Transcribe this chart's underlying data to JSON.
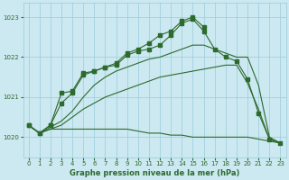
{
  "title": "Graphe pression niveau de la mer (hPa)",
  "background_color": "#cce8f0",
  "grid_color": "#99ccdd",
  "line_color": "#2d6a2d",
  "x_labels": [
    "0",
    "1",
    "2",
    "3",
    "4",
    "5",
    "6",
    "7",
    "8",
    "9",
    "10",
    "11",
    "12",
    "13",
    "14",
    "15",
    "16",
    "17",
    "18",
    "19",
    "20",
    "21",
    "22",
    "23"
  ],
  "ylim": [
    1019.5,
    1023.35
  ],
  "yticks": [
    1020,
    1021,
    1022,
    1023
  ],
  "figsize": [
    3.2,
    2.0
  ],
  "dpi": 100,
  "series": [
    {
      "x": [
        0,
        1,
        2,
        3,
        4,
        5,
        6,
        7,
        8,
        9,
        10,
        11,
        12,
        13,
        14,
        15,
        16,
        17,
        18,
        19,
        20,
        21,
        22,
        23
      ],
      "y": [
        1020.3,
        1020.1,
        1020.2,
        1020.2,
        1020.2,
        1020.2,
        1020.2,
        1020.2,
        1020.2,
        1020.2,
        1020.15,
        1020.1,
        1020.1,
        1020.05,
        1020.05,
        1020.0,
        1020.0,
        1020.0,
        1020.0,
        1020.0,
        1020.0,
        1019.95,
        1019.9,
        1019.85
      ],
      "markers": false
    },
    {
      "x": [
        0,
        1,
        2,
        3,
        4,
        5,
        6,
        7,
        8,
        9,
        10,
        11,
        12,
        13,
        14,
        15,
        16,
        17,
        18,
        19,
        20,
        21,
        22,
        23
      ],
      "y": [
        1020.3,
        1020.1,
        1020.2,
        1020.3,
        1020.5,
        1020.7,
        1020.85,
        1021.0,
        1021.1,
        1021.2,
        1021.3,
        1021.4,
        1021.5,
        1021.55,
        1021.6,
        1021.65,
        1021.7,
        1021.75,
        1021.8,
        1021.8,
        1021.35,
        1020.7,
        1019.95,
        1019.85
      ],
      "markers": false
    },
    {
      "x": [
        0,
        1,
        2,
        3,
        4,
        5,
        6,
        7,
        8,
        9,
        10,
        11,
        12,
        13,
        14,
        15,
        16,
        17,
        18,
        19,
        20,
        21,
        22,
        23
      ],
      "y": [
        1020.3,
        1020.1,
        1020.25,
        1020.4,
        1020.65,
        1021.0,
        1021.3,
        1021.5,
        1021.65,
        1021.75,
        1021.85,
        1021.95,
        1022.0,
        1022.1,
        1022.2,
        1022.3,
        1022.3,
        1022.2,
        1022.1,
        1022.0,
        1022.0,
        1021.3,
        1020.0,
        1019.85
      ],
      "markers": false
    },
    {
      "x": [
        0,
        1,
        2,
        3,
        4,
        5,
        6,
        7,
        8,
        9,
        10,
        11,
        12,
        13,
        14,
        15,
        16,
        17,
        18,
        19,
        20,
        21,
        22,
        23
      ],
      "y": [
        1020.3,
        1020.1,
        1020.3,
        1020.85,
        1021.1,
        1021.55,
        1021.65,
        1021.75,
        1021.8,
        1022.05,
        1022.15,
        1022.2,
        1022.3,
        1022.55,
        1022.85,
        1022.95,
        1022.65,
        1022.2,
        1022.0,
        1021.9,
        1021.45,
        1020.6,
        1019.95,
        1019.85
      ],
      "markers": true
    },
    {
      "x": [
        0,
        1,
        2,
        3,
        4,
        5,
        6,
        7,
        8,
        9,
        10,
        11,
        12,
        13,
        14,
        15,
        16
      ],
      "y": [
        1020.3,
        1020.1,
        1020.3,
        1021.1,
        1021.15,
        1021.6,
        1021.65,
        1021.75,
        1021.85,
        1022.1,
        1022.2,
        1022.35,
        1022.55,
        1022.65,
        1022.9,
        1023.0,
        1022.75
      ],
      "markers": true
    }
  ]
}
